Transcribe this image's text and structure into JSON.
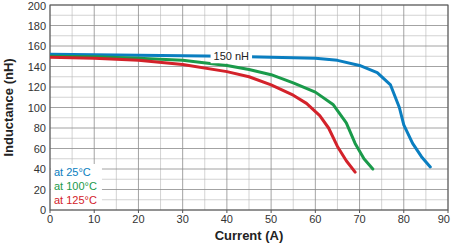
{
  "chart_data": {
    "type": "line",
    "x_label": "Current (A)",
    "y_label": "Inductance (nH)",
    "xlim": [
      0,
      90
    ],
    "xticks": [
      0,
      10,
      20,
      30,
      40,
      50,
      60,
      70,
      80,
      90
    ],
    "ylim": [
      0,
      200
    ],
    "yticks": [
      0,
      20,
      40,
      60,
      80,
      100,
      120,
      140,
      160,
      180,
      200
    ],
    "grid": true,
    "legend": "lower left",
    "annotations": [
      {
        "text": "150 nH",
        "x": 41,
        "y": 150
      }
    ],
    "series": [
      {
        "name": "at 25°C",
        "color": "#0a7ec0",
        "x": [
          0,
          10,
          20,
          30,
          40,
          50,
          60,
          65,
          70,
          74,
          77,
          79,
          80,
          82,
          84,
          86
        ],
        "values": [
          152,
          151.5,
          151,
          150.5,
          150,
          149,
          148,
          146,
          141,
          134,
          122,
          100,
          83,
          65,
          52,
          42
        ]
      },
      {
        "name": "at 100°C",
        "color": "#1a9a4a",
        "x": [
          0,
          10,
          20,
          30,
          40,
          45,
          50,
          55,
          60,
          64,
          67,
          69,
          71,
          73
        ],
        "values": [
          150,
          149.5,
          148,
          146,
          141,
          137,
          132,
          124,
          115,
          103,
          85,
          65,
          50,
          40
        ]
      },
      {
        "name": "at 125°C",
        "color": "#d3222a",
        "x": [
          0,
          10,
          20,
          30,
          40,
          45,
          50,
          55,
          58,
          61,
          63,
          65,
          67,
          69
        ],
        "values": [
          149,
          148,
          146,
          142,
          135,
          130,
          122,
          112,
          104,
          92,
          80,
          62,
          48,
          37
        ]
      }
    ]
  }
}
